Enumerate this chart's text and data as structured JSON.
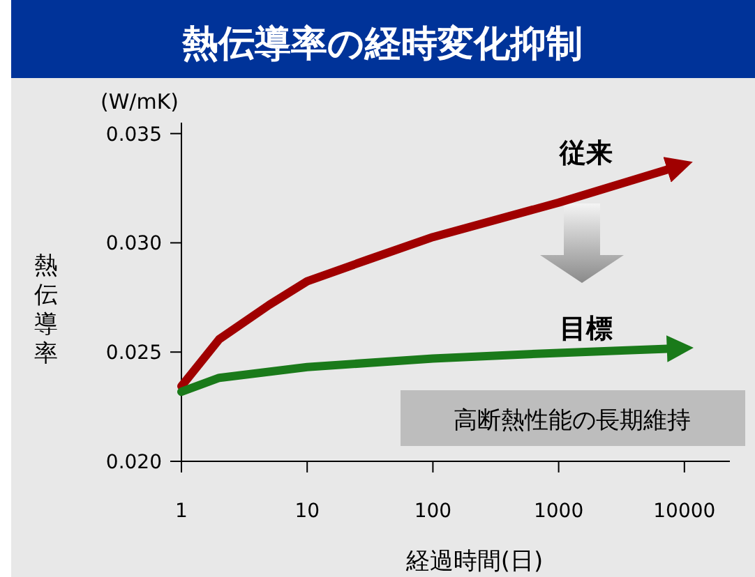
{
  "chart_data": {
    "type": "line",
    "title": "熱伝導率の経時変化抑制",
    "xlabel": "経過時間(日)",
    "ylabel": "熱伝導率",
    "annotations": [
      "(W/mK)",
      "高断熱性能の長期維持"
    ],
    "log": "x",
    "xlim": [
      1,
      23000
    ],
    "xticks": [
      1,
      10,
      100,
      1000,
      10000
    ],
    "ylim": [
      0.02,
      0.0355
    ],
    "yticks": [
      {
        "value": 0.02,
        "label": "0.020"
      },
      {
        "value": 0.025,
        "label": "0.025"
      },
      {
        "value": 0.03,
        "label": "0.030"
      },
      {
        "value": 0.035,
        "label": "0.035"
      }
    ],
    "grid": false,
    "legend": false,
    "marker": "none",
    "line_style": "solid",
    "series": [
      {
        "name": "従来",
        "color": "#a00000",
        "x": [
          1,
          2,
          5,
          10,
          30,
          100,
          1000,
          8000
        ],
        "values": [
          0.02344,
          0.02559,
          0.02716,
          0.02824,
          0.02922,
          0.03026,
          0.03184,
          0.03342
        ]
      },
      {
        "name": "目標",
        "color": "#1a7a1a",
        "x": [
          1,
          2,
          10,
          100,
          1000,
          8000
        ],
        "values": [
          0.02318,
          0.02382,
          0.02431,
          0.02471,
          0.02496,
          0.02516
        ]
      }
    ]
  }
}
